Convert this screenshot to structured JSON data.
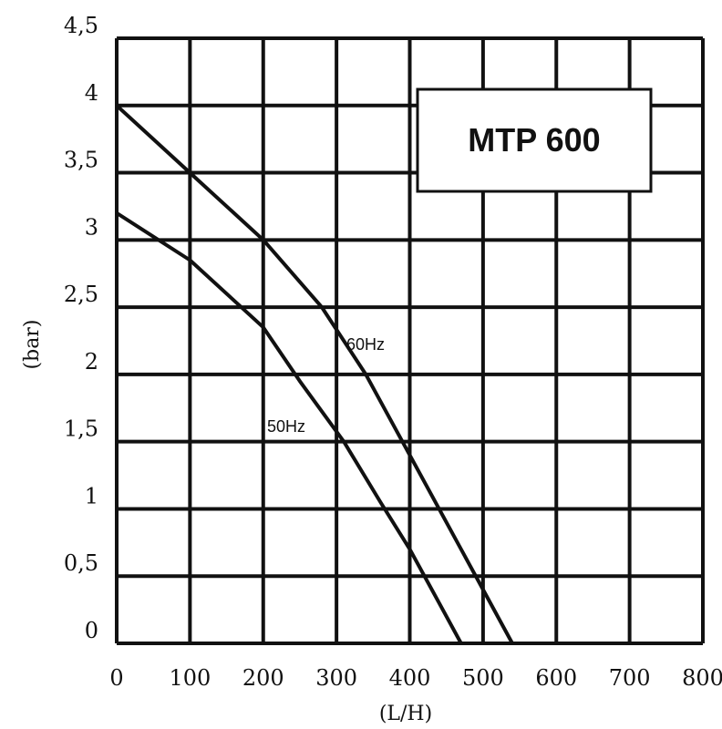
{
  "chart_data": {
    "type": "line",
    "title": "MTP 600",
    "xlabel": "(L/H)",
    "ylabel": "(bar)",
    "xlim": [
      0,
      800
    ],
    "ylim": [
      0,
      4.5
    ],
    "x_ticks": [
      "0",
      "100",
      "200",
      "300",
      "400",
      "500",
      "600",
      "700",
      "800"
    ],
    "y_ticks": [
      "0",
      "0,5",
      "1",
      "1,5",
      "2",
      "2,5",
      "3",
      "3,5",
      "4",
      "4,5"
    ],
    "grid": true,
    "series": [
      {
        "name": "60Hz",
        "x": [
          0,
          100,
          200,
          280,
          340,
          400,
          450,
          500,
          540
        ],
        "y": [
          4,
          3.5,
          3,
          2.5,
          2,
          1.4,
          0.9,
          0.4,
          0
        ]
      },
      {
        "name": "50Hz",
        "x": [
          0,
          100,
          200,
          250,
          310,
          360,
          400,
          440,
          470
        ],
        "y": [
          3.2,
          2.85,
          2.35,
          1.95,
          1.5,
          1.05,
          0.7,
          0.3,
          0
        ]
      }
    ]
  }
}
